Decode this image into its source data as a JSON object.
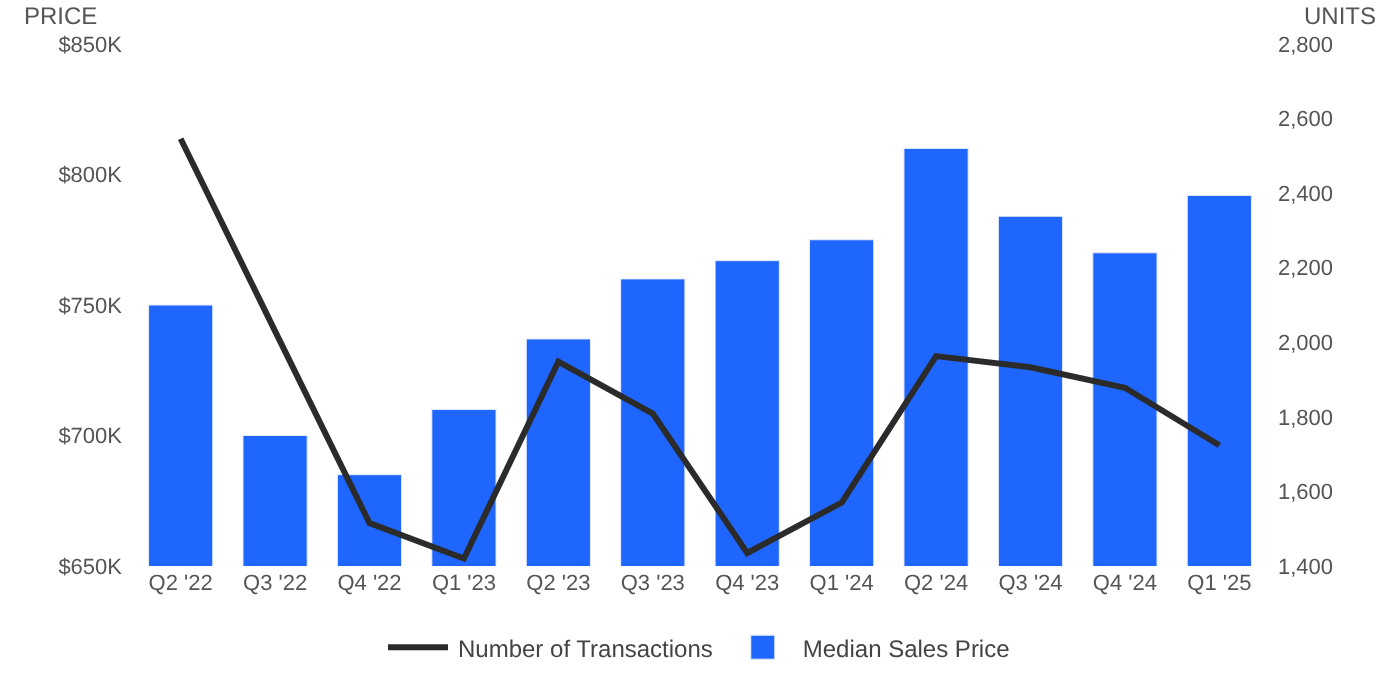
{
  "chart_data": {
    "type": "bar",
    "ylabel": "PRICE",
    "y2label": "UNITS",
    "categories": [
      "Q2 '22",
      "Q3 '22",
      "Q4 '22",
      "Q1 '23",
      "Q2 '23",
      "Q3 '23",
      "Q4 '23",
      "Q1 '24",
      "Q2 '24",
      "Q3 '24",
      "Q4 '24",
      "Q1 '25"
    ],
    "series": [
      {
        "name": "Number of Transactions",
        "type": "line",
        "axis": "y2",
        "color": "#2b2b2b",
        "values": [
          2546,
          2030,
          1515,
          1420,
          1948,
          1809,
          1435,
          1570,
          1963,
          1933,
          1878,
          1724
        ]
      },
      {
        "name": "Median Sales Price",
        "color": "#1f66ff",
        "values": [
          750,
          700,
          685,
          710,
          737,
          760,
          767,
          775,
          810,
          784,
          770,
          792
        ]
      }
    ],
    "ylim": [
      650,
      850
    ],
    "yticks": [
      {
        "value": 650,
        "label": "$650K"
      },
      {
        "value": 700,
        "label": "$700K"
      },
      {
        "value": 750,
        "label": "$750K"
      },
      {
        "value": 800,
        "label": "$800K"
      },
      {
        "value": 850,
        "label": "$850K"
      }
    ],
    "y2lim": [
      1400,
      2800
    ],
    "y2ticks": [
      {
        "value": 1400,
        "label": "1,400"
      },
      {
        "value": 1600,
        "label": "1,600"
      },
      {
        "value": 1800,
        "label": "1,800"
      },
      {
        "value": 2000,
        "label": "2,000"
      },
      {
        "value": 2200,
        "label": "2,200"
      },
      {
        "value": 2400,
        "label": "2,400"
      },
      {
        "value": 2600,
        "label": "2,600"
      },
      {
        "value": 2800,
        "label": "2,800"
      }
    ],
    "legend": "bottom",
    "marker": "none",
    "line_style": "solid"
  }
}
